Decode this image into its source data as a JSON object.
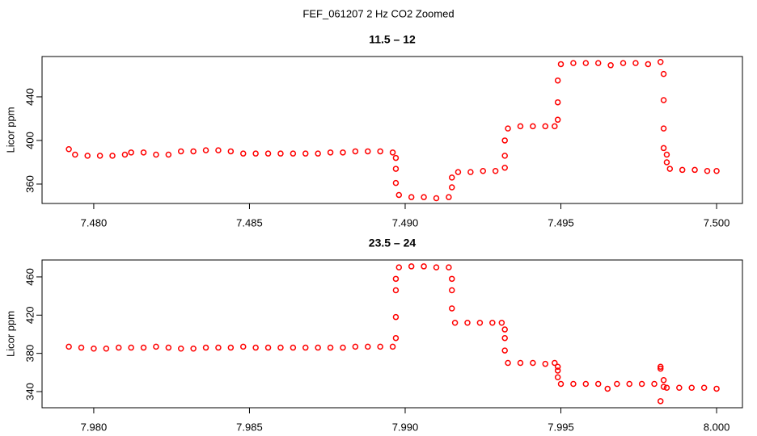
{
  "title": "FEF_061207  2 Hz CO2 Zoomed",
  "chart_data": [
    {
      "type": "scatter",
      "title": "11.5 – 12",
      "ylabel": "Licor ppm",
      "color": "#ff0000",
      "xlim": [
        7.47834,
        7.50083
      ],
      "ylim": [
        342.2,
        477
      ],
      "xticks": [
        {
          "value": 7.48,
          "label": "7.480"
        },
        {
          "value": 7.485,
          "label": "7.485"
        },
        {
          "value": 7.49,
          "label": "7.490"
        },
        {
          "value": 7.495,
          "label": "7.495"
        },
        {
          "value": 7.5,
          "label": "7.500"
        }
      ],
      "yticks": [
        360,
        400,
        440
      ],
      "x": [
        7.4792,
        7.4794,
        7.4798,
        7.4802,
        7.4806,
        7.481,
        7.4812,
        7.4816,
        7.482,
        7.4824,
        7.4828,
        7.4832,
        7.4836,
        7.484,
        7.4844,
        7.4848,
        7.4852,
        7.4856,
        7.486,
        7.4864,
        7.4868,
        7.4872,
        7.4876,
        7.488,
        7.4884,
        7.4888,
        7.4892,
        7.4896,
        7.4897,
        7.4897,
        7.4897,
        7.4898,
        7.4902,
        7.4906,
        7.491,
        7.4914,
        7.4915,
        7.4915,
        7.4917,
        7.4921,
        7.4925,
        7.4929,
        7.4932,
        7.4932,
        7.4932,
        7.4933,
        7.4937,
        7.4941,
        7.4945,
        7.4948,
        7.4949,
        7.4949,
        7.4949,
        7.495,
        7.4954,
        7.4958,
        7.4962,
        7.4966,
        7.497,
        7.4974,
        7.4978,
        7.4982,
        7.4983,
        7.4983,
        7.4983,
        7.4983,
        7.4984,
        7.4984,
        7.4985,
        7.4989,
        7.4993,
        7.4997,
        7.5
      ],
      "values": [
        392,
        387,
        386,
        386,
        386,
        387,
        389,
        389,
        387,
        387,
        390,
        390,
        391,
        391,
        390,
        388,
        388,
        388,
        388,
        388,
        388,
        388,
        389,
        389,
        390,
        390,
        390,
        389,
        384,
        374,
        361,
        350,
        348,
        348,
        347,
        348,
        357,
        366,
        371,
        371,
        372,
        372,
        375,
        386,
        400,
        411,
        413,
        413,
        413,
        413,
        419,
        435,
        455,
        470,
        471,
        471,
        471,
        469,
        471,
        471,
        470,
        472,
        461,
        437,
        411,
        393,
        387,
        380,
        374,
        373,
        373,
        372,
        372
      ]
    },
    {
      "type": "scatter",
      "title": "23.5 – 24",
      "ylabel": "Licor ppm",
      "color": "#ff0000",
      "xlim": [
        7.97834,
        8.00083
      ],
      "ylim": [
        323.1,
        477.7
      ],
      "xticks": [
        {
          "value": 7.98,
          "label": "7.980"
        },
        {
          "value": 7.985,
          "label": "7.985"
        },
        {
          "value": 7.99,
          "label": "7.990"
        },
        {
          "value": 7.995,
          "label": "7.995"
        },
        {
          "value": 8,
          "label": "8.000"
        }
      ],
      "yticks": [
        340,
        380,
        420,
        460
      ],
      "x": [
        7.9792,
        7.9796,
        7.98,
        7.9804,
        7.9808,
        7.9812,
        7.9816,
        7.982,
        7.9824,
        7.9828,
        7.9832,
        7.9836,
        7.984,
        7.9844,
        7.9848,
        7.9852,
        7.9856,
        7.986,
        7.9864,
        7.9868,
        7.9872,
        7.9876,
        7.988,
        7.9884,
        7.9888,
        7.9892,
        7.9896,
        7.9897,
        7.9897,
        7.9897,
        7.9897,
        7.9898,
        7.9902,
        7.9906,
        7.991,
        7.9914,
        7.9915,
        7.9915,
        7.9915,
        7.9916,
        7.992,
        7.9924,
        7.9928,
        7.9931,
        7.9932,
        7.9932,
        7.9932,
        7.9933,
        7.9937,
        7.9941,
        7.9945,
        7.9948,
        7.9949,
        7.9949,
        7.9949,
        7.995,
        7.9954,
        7.9958,
        7.9962,
        7.9965,
        7.9968,
        7.9972,
        7.9976,
        7.998,
        7.9982,
        7.9982,
        7.9983,
        7.9983,
        7.9982,
        7.9984,
        7.9988,
        7.9992,
        7.9996,
        8.0
      ],
      "values": [
        387,
        386,
        385,
        385,
        386,
        386,
        386,
        387,
        386,
        385,
        385,
        386,
        386,
        386,
        387,
        386,
        386,
        386,
        386,
        386,
        386,
        386,
        386,
        387,
        387,
        387,
        387,
        396,
        418,
        446,
        458,
        470,
        471,
        471,
        470,
        470,
        458,
        446,
        427,
        412,
        412,
        412,
        412,
        412,
        405,
        396,
        383,
        370,
        370,
        370,
        369,
        370,
        366,
        362,
        355,
        348,
        348,
        348,
        348,
        343,
        348,
        348,
        348,
        348,
        366,
        364,
        352,
        345,
        330,
        344,
        344,
        344,
        344,
        343
      ]
    }
  ]
}
